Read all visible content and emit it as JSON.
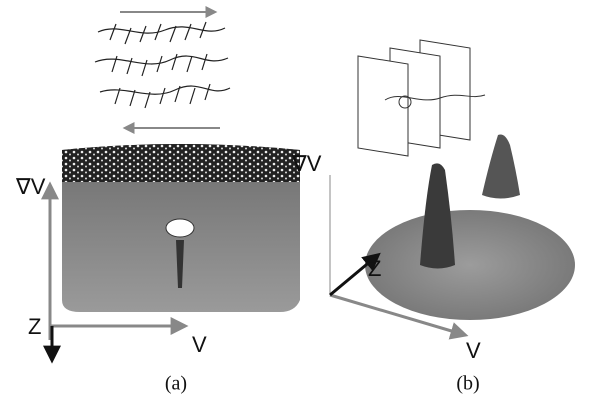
{
  "panels": [
    {
      "label": "(a)",
      "axes": {
        "vertical": "∇V",
        "horizontal": "V",
        "depth": "Z"
      }
    },
    {
      "label": "(b)",
      "axes": {
        "vertical": "∇V",
        "horizontal": "V",
        "depth": "Z"
      }
    }
  ]
}
